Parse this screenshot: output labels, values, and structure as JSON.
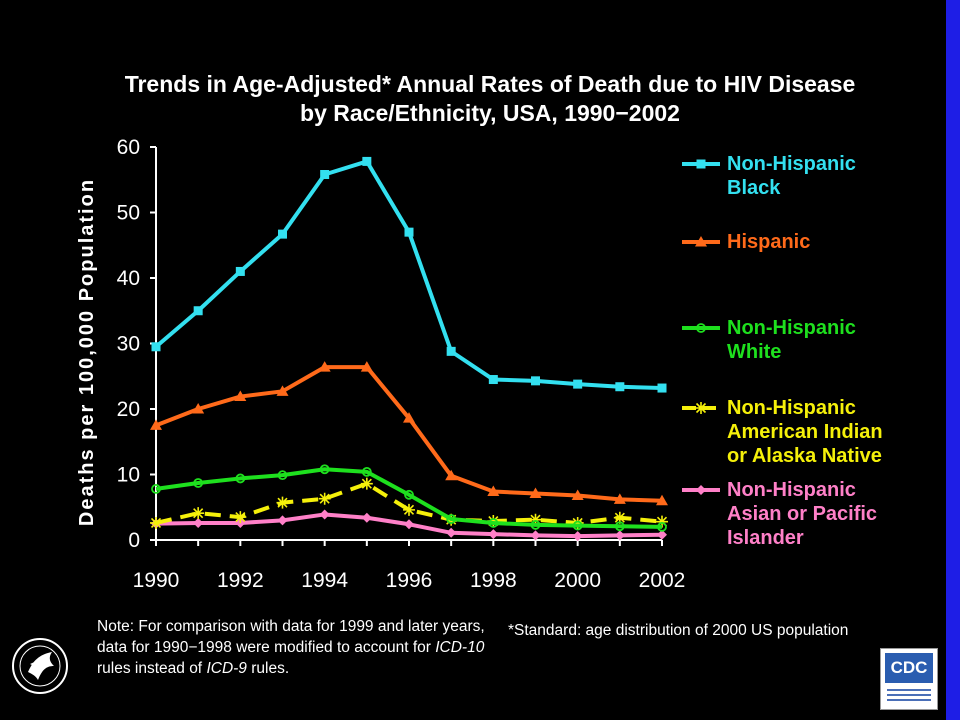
{
  "colors": {
    "background": "#000000",
    "right_bar": "#1e1ee6",
    "axis": "#ffffff"
  },
  "title_lines": [
    "Trends in Age-Adjusted* Annual Rates of Death due to HIV Disease",
    "by Race/Ethnicity, USA, 1990−2002"
  ],
  "note": {
    "prefix": "Note: For comparison with data for 1999 and later years, data for 1990−1998 were modified to account for ",
    "icd10": "ICD-10",
    "middle": " rules instead of ",
    "icd9": "ICD-9",
    "suffix": " rules."
  },
  "standard_note": "*Standard: age distribution of 2000 US population",
  "logos": {
    "cdc_text": "CDC"
  },
  "chart_data": {
    "type": "line",
    "title": "Trends in Age-Adjusted* Annual Rates of Death due to HIV Disease by Race/Ethnicity, USA, 1990−2002",
    "xlabel": "",
    "ylabel": "Deaths per 100,000 Population",
    "x": [
      1990,
      1991,
      1992,
      1993,
      1994,
      1995,
      1996,
      1997,
      1998,
      1999,
      2000,
      2001,
      2002
    ],
    "xticks": [
      "1990",
      "1992",
      "1994",
      "1996",
      "1998",
      "2000",
      "2002"
    ],
    "yticks": [
      "0",
      "10",
      "20",
      "30",
      "40",
      "50",
      "60"
    ],
    "xlim": [
      1990,
      2002
    ],
    "ylim": [
      0,
      60
    ],
    "grid": false,
    "legend_position": "right",
    "series": [
      {
        "name": "Non-Hispanic Black",
        "label_lines": [
          "Non-Hispanic",
          "Black"
        ],
        "color": "#33e0f0",
        "marker": "square",
        "dash": false,
        "values": [
          29.5,
          35.0,
          41.0,
          46.7,
          55.8,
          57.8,
          47.0,
          28.8,
          24.5,
          24.3,
          23.8,
          23.4,
          23.2
        ]
      },
      {
        "name": "Hispanic",
        "label_lines": [
          "Hispanic"
        ],
        "color": "#ff6a1a",
        "marker": "triangle",
        "dash": false,
        "values": [
          17.5,
          20.0,
          21.9,
          22.7,
          26.4,
          26.4,
          18.6,
          9.8,
          7.4,
          7.1,
          6.8,
          6.2,
          6.0
        ]
      },
      {
        "name": "Non-Hispanic White",
        "label_lines": [
          "Non-Hispanic",
          "White"
        ],
        "color": "#1ee01e",
        "marker": "circle",
        "dash": false,
        "values": [
          7.8,
          8.7,
          9.4,
          9.9,
          10.8,
          10.4,
          6.9,
          3.2,
          2.6,
          2.3,
          2.2,
          2.1,
          2.0
        ]
      },
      {
        "name": "Non-Hispanic American Indian or Alaska Native",
        "label_lines": [
          "Non-Hispanic",
          "American Indian",
          "or Alaska Native"
        ],
        "color": "#f5f00a",
        "marker": "star",
        "dash": true,
        "values": [
          2.6,
          4.1,
          3.5,
          5.7,
          6.3,
          8.6,
          4.6,
          3.1,
          2.9,
          3.1,
          2.6,
          3.4,
          2.8
        ]
      },
      {
        "name": "Non-Hispanic Asian or Pacific Islander",
        "label_lines": [
          "Non-Hispanic",
          "Asian or Pacific",
          "Islander"
        ],
        "color": "#ff80c8",
        "marker": "diamond",
        "dash": false,
        "values": [
          2.5,
          2.6,
          2.6,
          3.0,
          3.9,
          3.4,
          2.4,
          1.1,
          0.9,
          0.7,
          0.6,
          0.7,
          0.8
        ]
      }
    ]
  }
}
